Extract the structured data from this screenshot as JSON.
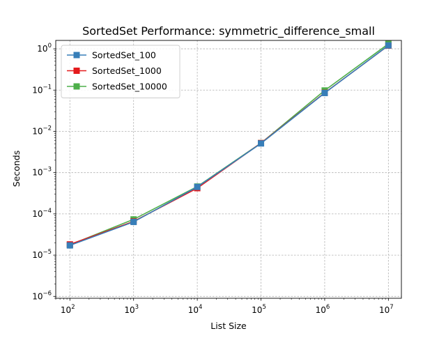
{
  "chart_data": {
    "type": "line",
    "title": "SortedSet Performance: symmetric_difference_small",
    "xlabel": "List Size",
    "ylabel": "Seconds",
    "xscale": "log",
    "yscale": "log",
    "xlim": [
      60,
      16000000
    ],
    "ylim": [
      9e-07,
      1.6
    ],
    "grid": true,
    "legend_position": "top-left",
    "x": [
      100,
      1000,
      10000,
      100000,
      1000000,
      10000000
    ],
    "x_ticks": [
      {
        "value": 100,
        "base": "10",
        "exp": "2"
      },
      {
        "value": 1000,
        "base": "10",
        "exp": "3"
      },
      {
        "value": 10000,
        "base": "10",
        "exp": "4"
      },
      {
        "value": 100000,
        "base": "10",
        "exp": "5"
      },
      {
        "value": 1000000,
        "base": "10",
        "exp": "6"
      },
      {
        "value": 10000000,
        "base": "10",
        "exp": "7"
      }
    ],
    "y_ticks": [
      {
        "value": 1e-06,
        "base": "10",
        "exp": "−6"
      },
      {
        "value": 1e-05,
        "base": "10",
        "exp": "−5"
      },
      {
        "value": 0.0001,
        "base": "10",
        "exp": "−4"
      },
      {
        "value": 0.001,
        "base": "10",
        "exp": "−3"
      },
      {
        "value": 0.01,
        "base": "10",
        "exp": "−2"
      },
      {
        "value": 0.1,
        "base": "10",
        "exp": "−1"
      },
      {
        "value": 1,
        "base": "10",
        "exp": "0"
      }
    ],
    "series": [
      {
        "name": "SortedSet_10000",
        "color": "#4daf4a",
        "values": [
          1.78e-05,
          7.35e-05,
          0.00046,
          0.0052,
          0.098,
          1.32
        ]
      },
      {
        "name": "SortedSet_1000",
        "color": "#e41a1c",
        "values": [
          1.82e-05,
          6.55e-05,
          0.00042,
          0.0052,
          0.086,
          1.2
        ]
      },
      {
        "name": "SortedSet_100",
        "color": "#377eb8",
        "values": [
          1.72e-05,
          6.38e-05,
          0.00045,
          0.0051,
          0.085,
          1.21
        ]
      }
    ],
    "legend_order": [
      "SortedSet_100",
      "SortedSet_1000",
      "SortedSet_10000"
    ]
  }
}
